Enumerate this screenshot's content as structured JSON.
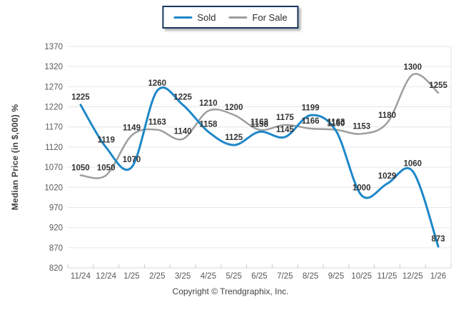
{
  "page": {
    "background": "#ffffff"
  },
  "legend": {
    "items": [
      {
        "label": "Sold",
        "color": "#1E87C8"
      },
      {
        "label": "For Sale",
        "color": "#9E9E9E"
      }
    ]
  },
  "footer": {
    "text": "Copyright © Trendgraphix, Inc."
  },
  "chart_data": {
    "type": "line",
    "title": "",
    "xlabel": "",
    "ylabel": "Median Price (in $,000) %",
    "categories": [
      "11/24",
      "12/24",
      "1/25",
      "2/25",
      "3/25",
      "4/25",
      "5/25",
      "6/25",
      "7/25",
      "8/25",
      "9/25",
      "10/25",
      "11/25",
      "12/25",
      "1/26"
    ],
    "series": [
      {
        "name": "Sold",
        "color": "#1E87C8",
        "stroke_width": 3,
        "values": [
          1225,
          1119,
          1070,
          1260,
          1225,
          1158,
          1125,
          1158,
          1145,
          1199,
          1160,
          1000,
          1029,
          1060,
          873
        ]
      },
      {
        "name": "For Sale",
        "color": "#9E9E9E",
        "stroke_width": 2.5,
        "values": [
          1050,
          1050,
          1149,
          1163,
          1140,
          1210,
          1200,
          1163,
          1175,
          1166,
          1163,
          1153,
          1180,
          1300,
          1255
        ]
      }
    ],
    "ylim": [
      820,
      1370
    ],
    "ytick_step": 50,
    "yticks": [
      "820",
      "870",
      "920",
      "970",
      "1020",
      "1070",
      "1120",
      "1170",
      "1220",
      "1270",
      "1320",
      "1370"
    ],
    "grid": "horizontal",
    "legend_position": "top-center",
    "data_labels": true,
    "colors": {
      "gridline": "#e6e6e6",
      "axis_line": "#d8d8d8",
      "tick": "#c9c9c9",
      "tick_label": "#595959",
      "data_label": "#333333"
    }
  }
}
